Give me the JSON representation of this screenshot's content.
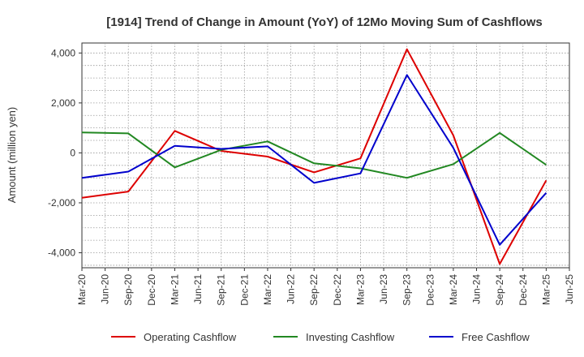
{
  "chart_data": {
    "type": "line",
    "title": "[1914]  Trend of Change in Amount (YoY) of 12Mo Moving Sum of Cashflows",
    "xlabel": "",
    "ylabel": "Amount (million yen)",
    "ylim": [
      -4600,
      4400
    ],
    "yticks": [
      4000,
      2000,
      0,
      -2000,
      -4000
    ],
    "ytick_labels": [
      "4,000",
      "2,000",
      "0",
      "-2,000",
      "-4,000"
    ],
    "grid": true,
    "legend_position": "bottom",
    "categories": [
      "Mar-20",
      "Jun-20",
      "Sep-20",
      "Dec-20",
      "Mar-21",
      "Jun-21",
      "Sep-21",
      "Dec-21",
      "Mar-22",
      "Jun-22",
      "Sep-22",
      "Dec-22",
      "Mar-23",
      "Jun-23",
      "Sep-23",
      "Dec-23",
      "Mar-24",
      "Jun-24",
      "Sep-24",
      "Dec-24",
      "Mar-25",
      "Jun-25"
    ],
    "series": [
      {
        "name": "Operating Cashflow",
        "color": "#dd0000",
        "values": [
          -1800,
          null,
          -1550,
          null,
          880,
          null,
          80,
          null,
          -150,
          null,
          -780,
          null,
          -220,
          null,
          4150,
          null,
          700,
          null,
          -4450,
          null,
          -1100,
          null
        ]
      },
      {
        "name": "Investing Cashflow",
        "color": "#228822",
        "values": [
          820,
          null,
          780,
          null,
          -580,
          null,
          120,
          null,
          460,
          null,
          -420,
          null,
          -620,
          null,
          -1000,
          null,
          -450,
          null,
          800,
          null,
          -480,
          null
        ]
      },
      {
        "name": "Free Cashflow",
        "color": "#0000cc",
        "values": [
          -1000,
          null,
          -750,
          null,
          280,
          null,
          160,
          null,
          260,
          null,
          -1200,
          null,
          -820,
          null,
          3120,
          null,
          200,
          null,
          -3680,
          null,
          -1600,
          null
        ]
      }
    ]
  }
}
